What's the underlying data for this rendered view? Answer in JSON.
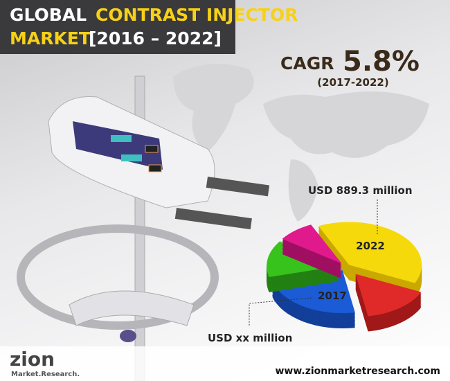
{
  "header": {
    "title_white": "GLOBAL",
    "title_yellow": "CONTRAST INJECTOR",
    "title_line2_yellow": "MARKET",
    "title_line2_white": "[2016 – 2022]"
  },
  "cagr": {
    "label": "CAGR",
    "value": "5.8%",
    "period": "(2017-2022)"
  },
  "pie": {
    "labels": [
      {
        "year": "2022",
        "value": "USD 889.3 million"
      },
      {
        "year": "2017",
        "value": "USD xx million"
      }
    ]
  },
  "footer": {
    "logo_name": "zion",
    "logo_sub": "Market.Research.",
    "url": "www.zionmarketresearch.com"
  }
}
